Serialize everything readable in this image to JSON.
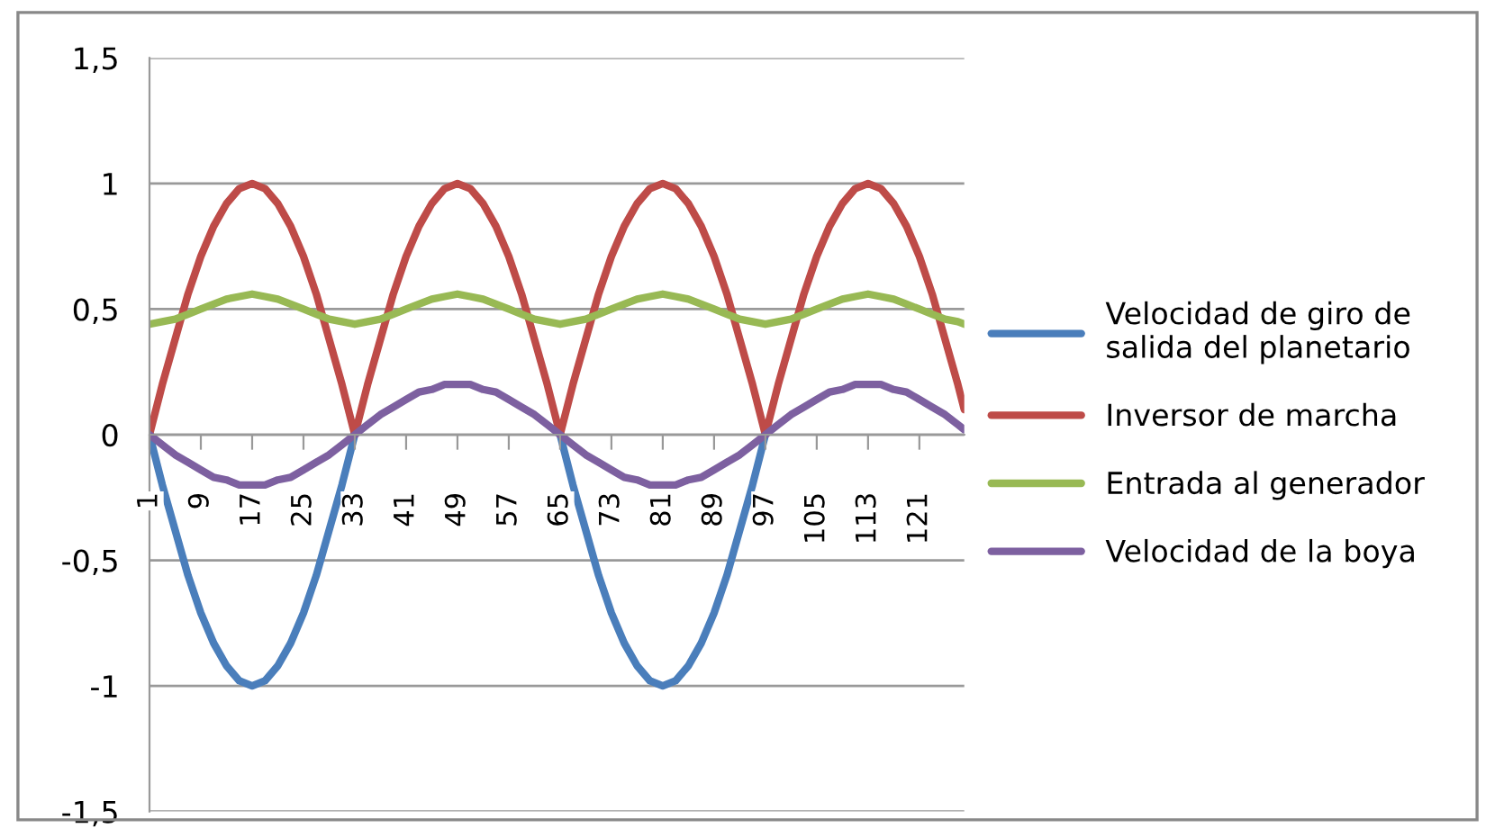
{
  "chart_data": {
    "type": "line",
    "x": [
      1,
      3,
      5,
      7,
      9,
      11,
      13,
      15,
      17,
      19,
      21,
      23,
      25,
      27,
      29,
      31,
      33,
      35,
      37,
      39,
      41,
      43,
      45,
      47,
      49,
      51,
      53,
      55,
      57,
      59,
      61,
      63,
      65,
      67,
      69,
      71,
      73,
      75,
      77,
      79,
      81,
      83,
      85,
      87,
      89,
      91,
      93,
      95,
      97,
      99,
      101,
      103,
      105,
      107,
      109,
      111,
      113,
      115,
      117,
      119,
      121,
      123,
      125,
      127,
      128
    ],
    "series": [
      {
        "name": "Velocidad de giro de\nsalida del planetario",
        "color": "#4a7ebb",
        "values": [
          0,
          -0.2,
          -0.38,
          -0.56,
          -0.71,
          -0.83,
          -0.92,
          -0.98,
          -1,
          -0.98,
          -0.92,
          -0.83,
          -0.71,
          -0.56,
          -0.38,
          -0.2,
          0,
          null,
          null,
          null,
          null,
          null,
          null,
          null,
          null,
          null,
          null,
          null,
          null,
          null,
          null,
          null,
          0,
          -0.2,
          -0.38,
          -0.56,
          -0.71,
          -0.83,
          -0.92,
          -0.98,
          -1,
          -0.98,
          -0.92,
          -0.83,
          -0.71,
          -0.56,
          -0.38,
          -0.2,
          0,
          null,
          null,
          null,
          null,
          null,
          null,
          null,
          null,
          null,
          null,
          null,
          null,
          null,
          null,
          null,
          null
        ]
      },
      {
        "name": "Inversor de marcha",
        "color": "#be4b48",
        "values": [
          0,
          0.2,
          0.38,
          0.56,
          0.71,
          0.83,
          0.92,
          0.98,
          1,
          0.98,
          0.92,
          0.83,
          0.71,
          0.56,
          0.38,
          0.2,
          0,
          0.2,
          0.38,
          0.56,
          0.71,
          0.83,
          0.92,
          0.98,
          1,
          0.98,
          0.92,
          0.83,
          0.71,
          0.56,
          0.38,
          0.2,
          0,
          0.2,
          0.38,
          0.56,
          0.71,
          0.83,
          0.92,
          0.98,
          1,
          0.98,
          0.92,
          0.83,
          0.71,
          0.56,
          0.38,
          0.2,
          0,
          0.2,
          0.38,
          0.56,
          0.71,
          0.83,
          0.92,
          0.98,
          1,
          0.98,
          0.92,
          0.83,
          0.71,
          0.56,
          0.38,
          0.2,
          0.1
        ]
      },
      {
        "name": "Entrada al generador",
        "color": "#98b954",
        "values": [
          0.44,
          0.45,
          0.46,
          0.48,
          0.5,
          0.52,
          0.54,
          0.55,
          0.56,
          0.55,
          0.54,
          0.52,
          0.5,
          0.48,
          0.46,
          0.45,
          0.44,
          0.45,
          0.46,
          0.48,
          0.5,
          0.52,
          0.54,
          0.55,
          0.56,
          0.55,
          0.54,
          0.52,
          0.5,
          0.48,
          0.46,
          0.45,
          0.44,
          0.45,
          0.46,
          0.48,
          0.5,
          0.52,
          0.54,
          0.55,
          0.56,
          0.55,
          0.54,
          0.52,
          0.5,
          0.48,
          0.46,
          0.45,
          0.44,
          0.45,
          0.46,
          0.48,
          0.5,
          0.52,
          0.54,
          0.55,
          0.56,
          0.55,
          0.54,
          0.52,
          0.5,
          0.48,
          0.46,
          0.45,
          0.44
        ]
      },
      {
        "name": "Velocidad de la boya",
        "color": "#7d60a0",
        "values": [
          0,
          -0.04,
          -0.08,
          -0.11,
          -0.14,
          -0.17,
          -0.18,
          -0.2,
          -0.2,
          -0.2,
          -0.18,
          -0.17,
          -0.14,
          -0.11,
          -0.08,
          -0.04,
          0,
          0.04,
          0.08,
          0.11,
          0.14,
          0.17,
          0.18,
          0.2,
          0.2,
          0.2,
          0.18,
          0.17,
          0.14,
          0.11,
          0.08,
          0.04,
          0,
          -0.04,
          -0.08,
          -0.11,
          -0.14,
          -0.17,
          -0.18,
          -0.2,
          -0.2,
          -0.2,
          -0.18,
          -0.17,
          -0.14,
          -0.11,
          -0.08,
          -0.04,
          0,
          0.04,
          0.08,
          0.11,
          0.14,
          0.17,
          0.18,
          0.2,
          0.2,
          0.2,
          0.18,
          0.17,
          0.14,
          0.11,
          0.08,
          0.04,
          0.02
        ]
      }
    ],
    "xlim": [
      1,
      128
    ],
    "xticks": [
      1,
      9,
      17,
      25,
      33,
      41,
      49,
      57,
      65,
      73,
      81,
      89,
      97,
      105,
      113,
      121
    ],
    "ylim": [
      -1.5,
      1.5
    ],
    "yticks": [
      {
        "value": -1.5,
        "label": "-1,5"
      },
      {
        "value": -1,
        "label": "-1"
      },
      {
        "value": -0.5,
        "label": "-0,5"
      },
      {
        "value": 0,
        "label": "0"
      },
      {
        "value": 0.5,
        "label": "0,5"
      },
      {
        "value": 1,
        "label": "1"
      },
      {
        "value": 1.5,
        "label": "1,5"
      }
    ],
    "grid": "y",
    "legend": "right",
    "marker": "none",
    "line_style": "solid"
  }
}
